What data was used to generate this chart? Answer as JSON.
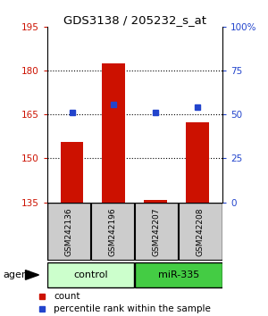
{
  "title": "GDS3138 / 205232_s_at",
  "samples": [
    "GSM242136",
    "GSM242196",
    "GSM242207",
    "GSM242208"
  ],
  "groups": [
    "control",
    "control",
    "miR-335",
    "miR-335"
  ],
  "count_values": [
    155.5,
    182.5,
    135.8,
    162.5
  ],
  "percentile_values": [
    51,
    56,
    51,
    54
  ],
  "ylim_left": [
    135,
    195
  ],
  "ylim_right": [
    0,
    100
  ],
  "yticks_left": [
    135,
    150,
    165,
    180,
    195
  ],
  "yticks_right": [
    0,
    25,
    50,
    75,
    100
  ],
  "yticklabels_right": [
    "0",
    "25",
    "50",
    "75",
    "100%"
  ],
  "bar_color": "#cc1100",
  "dot_color": "#2244cc",
  "control_color": "#ccffcc",
  "mir_color": "#44cc44",
  "sample_box_color": "#cccccc",
  "background_color": "#ffffff",
  "grid_color": "#000000",
  "bar_width": 0.55,
  "legend_count_color": "#cc1100",
  "legend_dot_color": "#2244cc",
  "grid_yticks": [
    150,
    165,
    180
  ]
}
